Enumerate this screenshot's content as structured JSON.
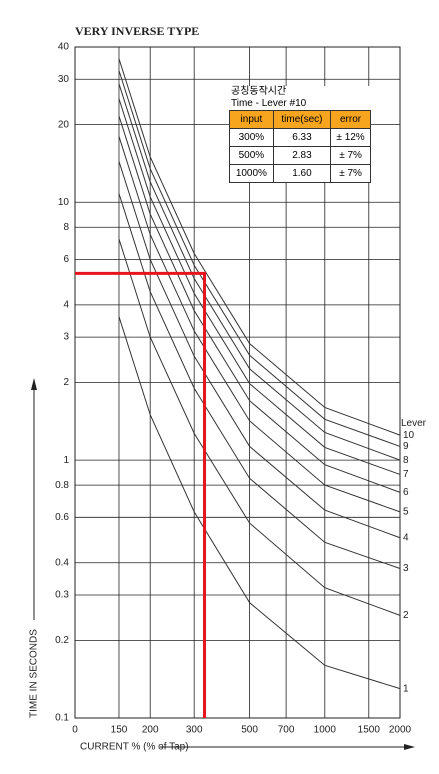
{
  "chart_data": {
    "type": "line",
    "title": "VERY INVERSE TYPE",
    "xlabel": "CURRENT  % (% of Tap)",
    "ylabel": "TIME IN SECONDS",
    "legend_title": "Lever",
    "log_x": true,
    "log_y": true,
    "grid": true,
    "xlim": [
      100,
      2000
    ],
    "ylim": [
      0.1,
      40
    ],
    "xticks": [
      {
        "value": 100,
        "label": "0"
      },
      150,
      200,
      300,
      500,
      700,
      1000,
      1500,
      2000
    ],
    "yticks": [
      0.1,
      0.2,
      0.3,
      0.4,
      0.6,
      0.8,
      1,
      2,
      3,
      4,
      6,
      8,
      10,
      20,
      30,
      40
    ],
    "x": [
      150,
      200,
      300,
      500,
      1000,
      2000
    ],
    "series": [
      {
        "name": "1",
        "color": "#333333",
        "values": [
          3.6,
          1.5,
          0.63,
          0.28,
          0.16,
          0.13
        ]
      },
      {
        "name": "2",
        "color": "#333333",
        "values": [
          7.2,
          3,
          1.27,
          0.57,
          0.32,
          0.25
        ]
      },
      {
        "name": "3",
        "color": "#333333",
        "values": [
          10.8,
          4.5,
          1.9,
          0.85,
          0.48,
          0.38
        ]
      },
      {
        "name": "4",
        "color": "#333333",
        "values": [
          14.4,
          6,
          2.53,
          1.13,
          0.64,
          0.5
        ]
      },
      {
        "name": "5",
        "color": "#333333",
        "values": [
          18,
          7.5,
          3.17,
          1.42,
          0.8,
          0.63
        ]
      },
      {
        "name": "6",
        "color": "#333333",
        "values": [
          21.6,
          9,
          3.8,
          1.7,
          0.96,
          0.75
        ]
      },
      {
        "name": "7",
        "color": "#333333",
        "values": [
          25.2,
          10.5,
          4.43,
          1.98,
          1.12,
          0.88
        ]
      },
      {
        "name": "8",
        "color": "#333333",
        "values": [
          28.8,
          12,
          5.06,
          2.26,
          1.28,
          1.0
        ]
      },
      {
        "name": "9",
        "color": "#333333",
        "values": [
          32.4,
          13.5,
          5.7,
          2.55,
          1.44,
          1.13
        ]
      },
      {
        "name": "10",
        "color": "#333333",
        "values": [
          36,
          15,
          6.33,
          2.83,
          1.6,
          1.25
        ]
      }
    ],
    "marker": {
      "x": 330,
      "y": 5.3,
      "color": "#e8141c"
    },
    "table": {
      "title": "공칭동작시간",
      "subtitle": "Time - Lever #10",
      "header_color": "#f7a51f",
      "columns": [
        "input",
        "time(sec)",
        "error"
      ],
      "rows": [
        [
          "300%",
          "6.33",
          "± 12%"
        ],
        [
          "500%",
          "2.83",
          "± 7%"
        ],
        [
          "1000%",
          "1.60",
          "± 7%"
        ]
      ]
    }
  }
}
